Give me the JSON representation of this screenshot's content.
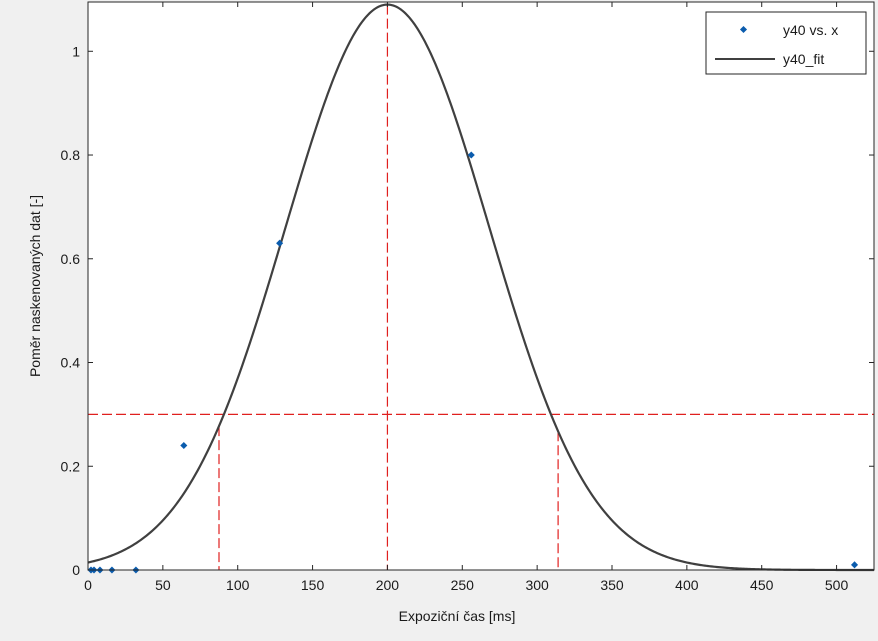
{
  "chart_data": {
    "type": "scatter",
    "xlabel": "Expoziční čas [ms]",
    "ylabel": "Poměr naskenovaných dat [-]",
    "xlim": [
      0,
      525
    ],
    "ylim": [
      0,
      1.095
    ],
    "x_ticks": [
      0,
      50,
      100,
      150,
      200,
      250,
      300,
      350,
      400,
      450,
      500
    ],
    "y_ticks": [
      0,
      0.2,
      0.4,
      0.6,
      0.8,
      1
    ],
    "y_tick_labels": [
      "0",
      "0.2",
      "0.4",
      "0.6",
      "0.8",
      "1"
    ],
    "grid": false,
    "legend": {
      "position": "top-right",
      "entries": [
        "y40 vs. x",
        "y40_fit"
      ]
    },
    "series": [
      {
        "name": "y40 vs. x",
        "kind": "scatter",
        "color": "#0b5cad",
        "points": [
          {
            "x": 2,
            "y": 0
          },
          {
            "x": 4,
            "y": 0
          },
          {
            "x": 8,
            "y": 0
          },
          {
            "x": 16,
            "y": 0
          },
          {
            "x": 32,
            "y": 0
          },
          {
            "x": 64,
            "y": 0.24
          },
          {
            "x": 128,
            "y": 0.63
          },
          {
            "x": 256,
            "y": 0.8
          },
          {
            "x": 512,
            "y": 0.01
          }
        ]
      },
      {
        "name": "y40_fit",
        "kind": "line",
        "color": "#404040",
        "model": {
          "amplitude": 1.09,
          "center": 200,
          "sigma": 68
        }
      }
    ],
    "annotations": {
      "color": "#e0201f",
      "hline_y": 0.3,
      "vlines_x": [
        87.5,
        200,
        314
      ]
    }
  }
}
